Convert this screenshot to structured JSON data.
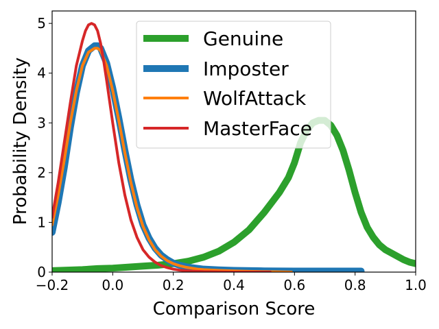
{
  "chart_data": {
    "type": "line",
    "xlabel": "Comparison Score",
    "ylabel": "Probability Density",
    "xlim": [
      -0.2,
      1.0
    ],
    "ylim": [
      0,
      5.25
    ],
    "xticks": [
      -0.2,
      0.0,
      0.2,
      0.4,
      0.6,
      0.8,
      1.0
    ],
    "xtick_labels": [
      "−0.2",
      "0.0",
      "0.2",
      "0.4",
      "0.6",
      "0.8",
      "1.0"
    ],
    "yticks": [
      0,
      1,
      2,
      3,
      4,
      5
    ],
    "ytick_labels": [
      "0",
      "1",
      "2",
      "3",
      "4",
      "5"
    ],
    "grid": false,
    "legend_position": "top-center",
    "series": [
      {
        "name": "Genuine",
        "color": "#2ca02c",
        "line_weight": "thick",
        "x": [
          -0.2,
          -0.1,
          -0.05,
          0.0,
          0.05,
          0.1,
          0.15,
          0.2,
          0.25,
          0.3,
          0.35,
          0.4,
          0.45,
          0.5,
          0.55,
          0.58,
          0.6,
          0.62,
          0.64,
          0.66,
          0.68,
          0.7,
          0.72,
          0.74,
          0.76,
          0.78,
          0.8,
          0.82,
          0.84,
          0.86,
          0.88,
          0.9,
          0.93,
          0.96,
          0.98,
          1.0
        ],
        "y": [
          0.03,
          0.05,
          0.07,
          0.08,
          0.1,
          0.12,
          0.14,
          0.17,
          0.22,
          0.3,
          0.42,
          0.6,
          0.85,
          1.2,
          1.6,
          1.9,
          2.2,
          2.6,
          2.85,
          3.0,
          3.05,
          3.05,
          2.95,
          2.75,
          2.45,
          2.05,
          1.6,
          1.2,
          0.9,
          0.7,
          0.55,
          0.45,
          0.35,
          0.25,
          0.2,
          0.17
        ]
      },
      {
        "name": "Imposter",
        "color": "#1f77b4",
        "line_weight": "thick",
        "x": [
          -0.2,
          -0.18,
          -0.16,
          -0.14,
          -0.12,
          -0.1,
          -0.08,
          -0.06,
          -0.05,
          -0.04,
          -0.02,
          0.0,
          0.02,
          0.04,
          0.06,
          0.08,
          0.1,
          0.12,
          0.14,
          0.16,
          0.18,
          0.2,
          0.22,
          0.24,
          0.26,
          0.28,
          0.3,
          0.35,
          0.4,
          0.5,
          0.6,
          0.7,
          0.82
        ],
        "y": [
          0.8,
          1.4,
          2.1,
          2.9,
          3.6,
          4.15,
          4.45,
          4.55,
          4.55,
          4.5,
          4.2,
          3.7,
          3.1,
          2.45,
          1.85,
          1.35,
          0.95,
          0.68,
          0.48,
          0.34,
          0.25,
          0.18,
          0.14,
          0.11,
          0.09,
          0.075,
          0.06,
          0.045,
          0.035,
          0.025,
          0.02,
          0.02,
          0.02
        ]
      },
      {
        "name": "WolfAttack",
        "color": "#ff7f0e",
        "line_weight": "medium",
        "x": [
          -0.2,
          -0.18,
          -0.16,
          -0.14,
          -0.12,
          -0.1,
          -0.08,
          -0.06,
          -0.05,
          -0.04,
          -0.02,
          0.0,
          0.02,
          0.04,
          0.06,
          0.08,
          0.1,
          0.12,
          0.14,
          0.16,
          0.18,
          0.2,
          0.22,
          0.24,
          0.26,
          0.28,
          0.3,
          0.35,
          0.4,
          0.45,
          0.5,
          0.55,
          0.59
        ],
        "y": [
          0.95,
          1.55,
          2.25,
          3.0,
          3.65,
          4.15,
          4.42,
          4.5,
          4.5,
          4.45,
          4.15,
          3.65,
          3.05,
          2.4,
          1.8,
          1.3,
          0.92,
          0.65,
          0.45,
          0.32,
          0.23,
          0.17,
          0.13,
          0.1,
          0.08,
          0.06,
          0.05,
          0.035,
          0.025,
          0.015,
          0.01,
          0.005,
          0.0
        ]
      },
      {
        "name": "MasterFace",
        "color": "#d62728",
        "line_weight": "medium",
        "x": [
          -0.2,
          -0.18,
          -0.16,
          -0.14,
          -0.12,
          -0.1,
          -0.09,
          -0.08,
          -0.07,
          -0.06,
          -0.05,
          -0.04,
          -0.03,
          -0.02,
          0.0,
          0.02,
          0.04,
          0.06,
          0.08,
          0.1,
          0.12,
          0.14,
          0.16,
          0.18,
          0.2,
          0.22,
          0.24,
          0.26,
          0.3,
          0.35,
          0.4,
          0.45,
          0.52
        ],
        "y": [
          1.1,
          1.8,
          2.6,
          3.4,
          4.15,
          4.65,
          4.85,
          4.97,
          5.0,
          4.97,
          4.85,
          4.6,
          4.25,
          3.85,
          3.0,
          2.2,
          1.55,
          1.05,
          0.7,
          0.45,
          0.3,
          0.2,
          0.13,
          0.09,
          0.06,
          0.04,
          0.03,
          0.02,
          0.01,
          0.005,
          0.0,
          0.0,
          0.0
        ]
      }
    ]
  }
}
